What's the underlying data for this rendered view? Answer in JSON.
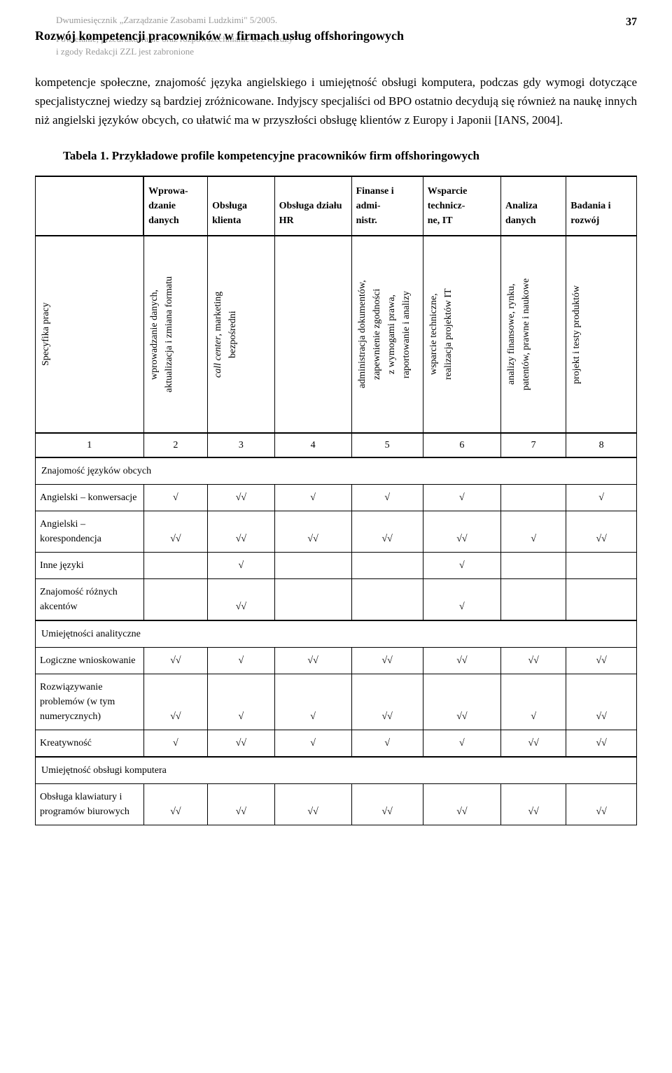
{
  "header": {
    "meta_line1": "Dwumiesięcznik „Zarządzanie Zasobami Ludzkimi\" 5/2005.",
    "meta_line2": "Powielanie, przedrukowanie oraz rozpowszechnianie bez wiedzy",
    "meta_line3": "i zgody Redakcji ZZL jest zabronione",
    "title": "Rozwój kompetencji pracowników w firmach usług offshoringowych",
    "page_number": "37"
  },
  "body_paragraph": "kompetencje społeczne, znajomość języka angielskiego i umiejętność obsługi komputera, podczas gdy wymogi dotyczące specjalistycznej wiedzy są bardziej zróżnicowane. Indyjscy specjaliści od BPO ostatnio decydują się również na naukę innych niż angielski języków obcych, co ułatwić ma w przyszłości obsługę klientów z Europy i Japonii [IANS, 2004].",
  "table": {
    "caption_label": "Tabela 1.",
    "caption_text": "Przykładowe profile kompetencyjne pracowników firm offshoringowych",
    "columns": [
      {
        "header": "",
        "vertical": "Specyfika pracy"
      },
      {
        "header": "Wprowa-dzanie danych",
        "vertical": "wprowadzanie danych, aktualizacja i zmiana formatu"
      },
      {
        "header": "Obsługa klienta",
        "vertical": "call center, marketing bezpośredni"
      },
      {
        "header": "Obsługa działu HR",
        "vertical": ""
      },
      {
        "header": "Finanse i admi-nistr.",
        "vertical": "administracja dokumentów, zapewnienie zgodności z wymogami prawa, raportowanie i analizy"
      },
      {
        "header": "Wsparcie technicz-ne, IT",
        "vertical": "wsparcie techniczne, realizacja projektów IT"
      },
      {
        "header": "Analiza danych",
        "vertical": "analizy finansowe, rynku, patentów, prawne i naukowe"
      },
      {
        "header": "Badania i rozwój",
        "vertical": "projekt i testy produktów"
      }
    ],
    "number_row": [
      "1",
      "2",
      "3",
      "4",
      "5",
      "6",
      "7",
      "8"
    ],
    "sections": [
      {
        "title": "Znajomość języków obcych",
        "rows": [
          {
            "label": "Angielski – konwersacje",
            "cells": [
              "√",
              "√√",
              "√",
              "√",
              "√",
              "",
              "√"
            ]
          },
          {
            "label": "Angielski – korespondencja",
            "cells": [
              "√√",
              "√√",
              "√√",
              "√√",
              "√√",
              "√",
              "√√"
            ]
          },
          {
            "label": "Inne języki",
            "cells": [
              "",
              "√",
              "",
              "",
              "√",
              "",
              ""
            ]
          },
          {
            "label": "Znajomość różnych akcentów",
            "cells": [
              "",
              "√√",
              "",
              "",
              "√",
              "",
              ""
            ]
          }
        ]
      },
      {
        "title": "Umiejętności analityczne",
        "rows": [
          {
            "label": "Logiczne wnioskowanie",
            "cells": [
              "√√",
              "√",
              "√√",
              "√√",
              "√√",
              "√√",
              "√√"
            ]
          },
          {
            "label": "Rozwiązywanie problemów (w tym numerycznych)",
            "cells": [
              "√√",
              "√",
              "√",
              "√√",
              "√√",
              "√",
              "√√"
            ]
          },
          {
            "label": "Kreatywność",
            "cells": [
              "√",
              "√√",
              "√",
              "√",
              "√",
              "√√",
              "√√"
            ]
          }
        ]
      },
      {
        "title": "Umiejętność obsługi komputera",
        "rows": [
          {
            "label": "Obsługa klawiatury i programów biurowych",
            "cells": [
              "√√",
              "√√",
              "√√",
              "√√",
              "√√",
              "√√",
              "√√"
            ]
          }
        ]
      }
    ]
  }
}
